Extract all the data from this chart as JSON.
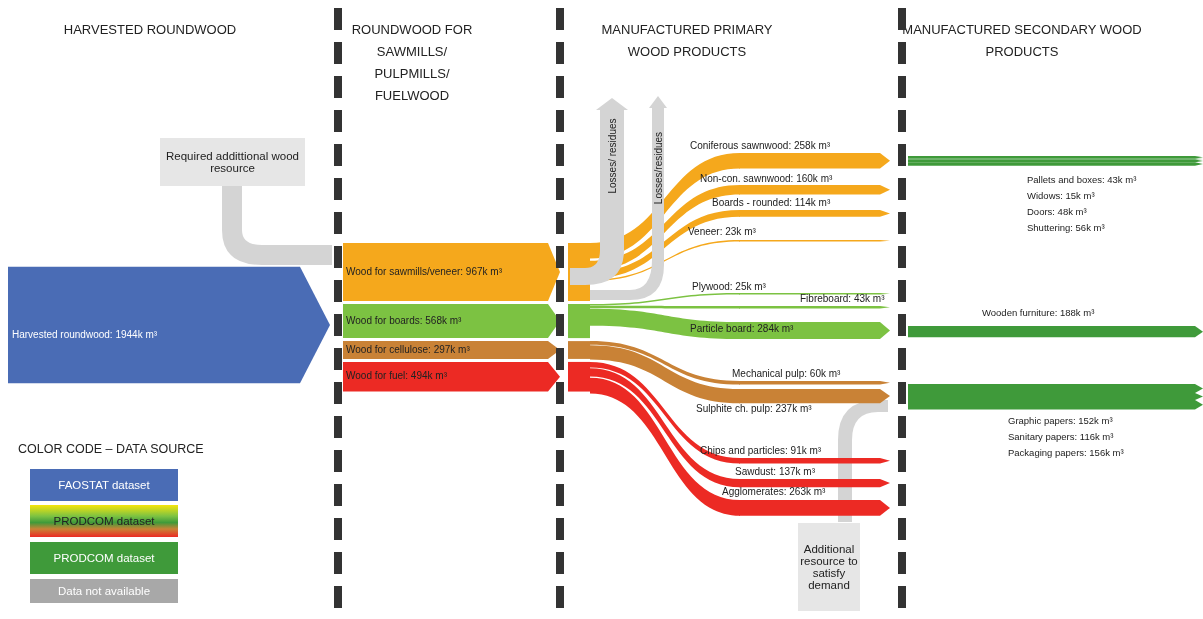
{
  "chart_data": {
    "type": "other",
    "categories": [
      "Harvested roundwood",
      "Wood for sawmills/veneer",
      "Wood for boards",
      "Wood for cellulose",
      "Wood for fuel",
      "Coniferous sawnwood",
      "Non-con. sawnwood",
      "Boards - rounded",
      "Veneer",
      "Plywood",
      "Fibreboard",
      "Particle board",
      "Mechanical pulp",
      "Sulphite ch. pulp",
      "Chips and particles",
      "Sawdust",
      "Agglomerates",
      "Pallets and boxes",
      "Widows",
      "Doors",
      "Shuttering",
      "Wooden furniture",
      "Graphic papers",
      "Sanitary papers",
      "Packaging papers"
    ],
    "values": [
      1944000,
      967000,
      568000,
      297000,
      494000,
      258000,
      160000,
      114000,
      23000,
      25000,
      43000,
      284000,
      60000,
      237000,
      91000,
      137000,
      263000,
      43000,
      15000,
      48000,
      56000,
      188000,
      152000,
      116000,
      156000
    ],
    "value_labels": [
      ": 1944k m³",
      ": 967k m³",
      ": 568k m³",
      ": 297k m³",
      ": 494k m³",
      ": 258k m³",
      ": 160k m³",
      ": 114k m³",
      ": 23k m³",
      ": 25k m³",
      ": 43k m³",
      ": 284k m³",
      ": 60k m³",
      ": 237k m³",
      ": 91k m³",
      ": 137k m³",
      ": 263k m³",
      ": 43k m³",
      ": 15k m³",
      ": 48k m³",
      ": 56k m³",
      ": 188k m³",
      ": 152k m³",
      ": 116k m³",
      ": 156k m³"
    ],
    "colors": [
      "#4a6cb5",
      "#f5a81c",
      "#7cc242",
      "#c98236",
      "#ec2a24",
      "#f5a81c",
      "#f5a81c",
      "#f5a81c",
      "#f5a81c",
      "#7cc242",
      "#7cc242",
      "#7cc242",
      "#c98236",
      "#c98236",
      "#ec2a24",
      "#ec2a24",
      "#ec2a24",
      "#3f9a3a",
      "#3f9a3a",
      "#3f9a3a",
      "#3f9a3a",
      "#3f9a3a",
      "#3f9a3a",
      "#3f9a3a",
      "#3f9a3a"
    ],
    "legend_title": "COLOR CODE – DATA SOURCE",
    "annotations": [
      "HARVESTED ROUNDWOOD",
      "ROUNDWOOD FOR SAWMILLS/ PULPMILLS/ FUELWOOD",
      "MANUFACTURED PRIMARY WOOD PRODUCTS",
      "MANUFACTURED SECONDARY WOOD PRODUCTS",
      "Required addittional wood resource",
      "Losses/ residues",
      "Losses/residues",
      "Additional resource to satisfy demand",
      "FAOSTAT dataset",
      "PRODCOM dataset",
      "PRODCOM dataset",
      "Data not available"
    ]
  }
}
